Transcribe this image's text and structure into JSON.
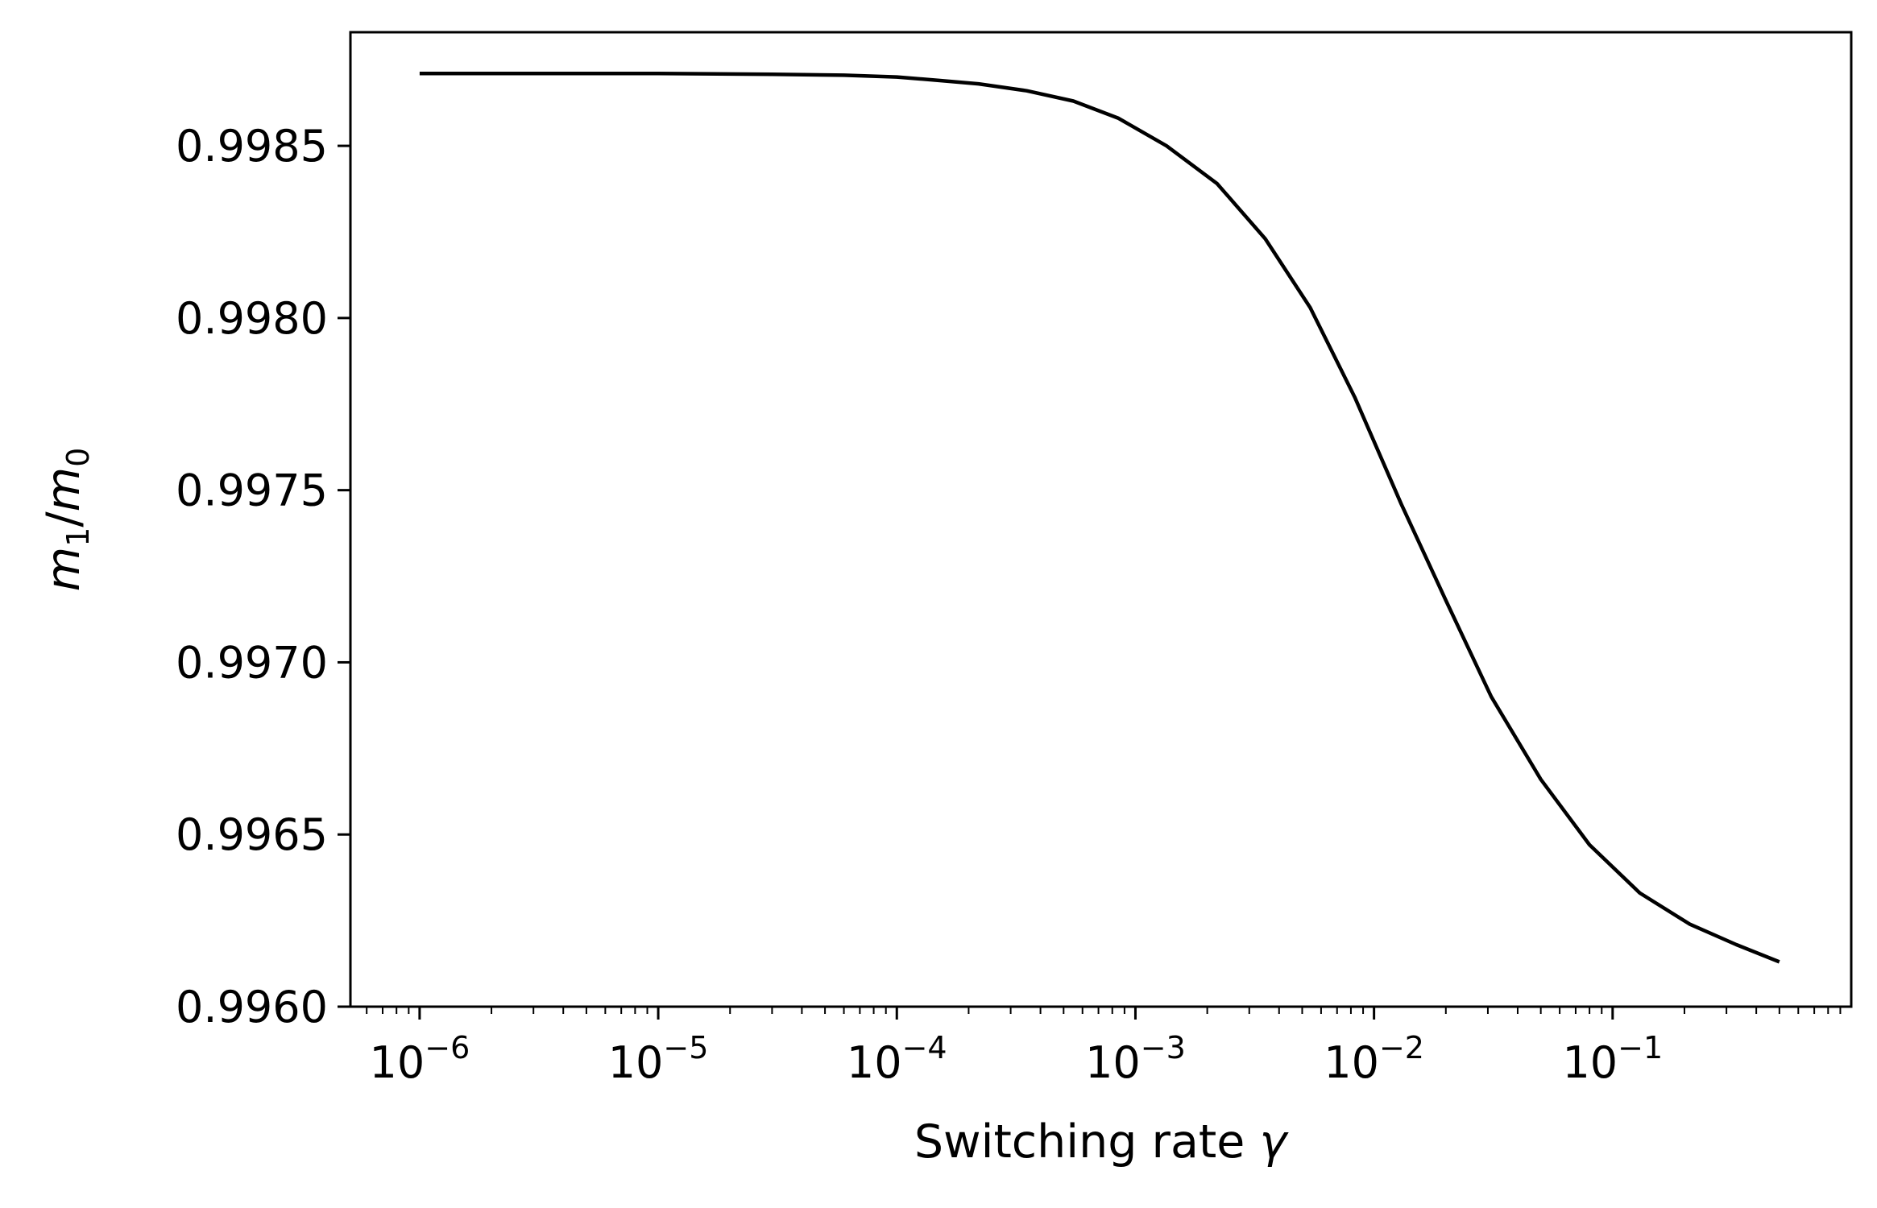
{
  "chart_data": {
    "type": "line",
    "title": "",
    "xlabel": "Switching rate γ",
    "xlabel_parts": {
      "text": "Switching rate ",
      "symbol": "γ"
    },
    "ylabel": "m1/m0",
    "ylabel_parts": {
      "num": "m",
      "num_sub": "1",
      "slash": "/",
      "den": "m",
      "den_sub": "0"
    },
    "xscale": "log",
    "x_exponent_range": [
      -6.29,
      0.0
    ],
    "ylim": [
      0.996,
      0.99883
    ],
    "x_ticks": [
      {
        "base": "10",
        "exp": "−6",
        "value": 1e-06
      },
      {
        "base": "10",
        "exp": "−5",
        "value": 1e-05
      },
      {
        "base": "10",
        "exp": "−4",
        "value": 0.0001
      },
      {
        "base": "10",
        "exp": "−3",
        "value": 0.001
      },
      {
        "base": "10",
        "exp": "−2",
        "value": 0.01
      },
      {
        "base": "10",
        "exp": "−1",
        "value": 0.1
      }
    ],
    "y_ticks": [
      {
        "label": "0.9960",
        "value": 0.996
      },
      {
        "label": "0.9965",
        "value": 0.9965
      },
      {
        "label": "0.9970",
        "value": 0.997
      },
      {
        "label": "0.9975",
        "value": 0.9975
      },
      {
        "label": "0.9980",
        "value": 0.998
      },
      {
        "label": "0.9985",
        "value": 0.9985
      }
    ],
    "grid": false,
    "color": "#000000",
    "series": [
      {
        "x": [
          1e-06,
          1e-05,
          3e-05,
          6e-05,
          0.0001,
          0.00015,
          0.00022,
          0.00035,
          0.00055,
          0.00085,
          0.00135,
          0.0022,
          0.0035,
          0.0054,
          0.0083,
          0.013,
          0.02,
          0.031,
          0.05,
          0.08,
          0.13,
          0.21,
          0.33,
          0.5
        ],
        "y": [
          0.99871,
          0.99871,
          0.998708,
          0.998705,
          0.9987,
          0.99869,
          0.99868,
          0.99866,
          0.99863,
          0.99858,
          0.9985,
          0.99839,
          0.99823,
          0.99803,
          0.99777,
          0.99746,
          0.99718,
          0.9969,
          0.99666,
          0.99647,
          0.99633,
          0.99624,
          0.99618,
          0.99613
        ]
      }
    ]
  }
}
